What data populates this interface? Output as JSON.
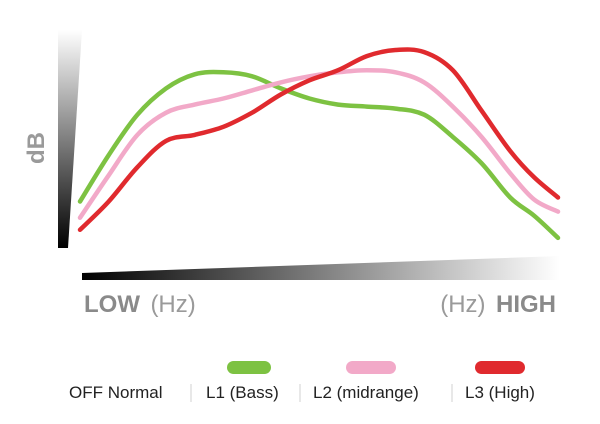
{
  "chart_data": {
    "type": "line",
    "title": "",
    "ylabel": "dB",
    "xlabel_low_bold": "LOW",
    "xlabel_low_unit": "(Hz)",
    "xlabel_high_unit": "(Hz)",
    "xlabel_high_bold": "HIGH",
    "xlim": [
      0,
      100
    ],
    "ylim": [
      0,
      100
    ],
    "grid": false,
    "legend_position": "bottom",
    "off_label": "OFF Normal",
    "series": [
      {
        "name": "L1 (Bass)",
        "color": "#7dc242",
        "x": [
          0,
          6,
          12,
          18,
          24,
          30,
          36,
          42,
          48,
          54,
          60,
          66,
          72,
          78,
          84,
          90,
          95,
          100
        ],
        "y": [
          23,
          46,
          66,
          79,
          86,
          87,
          85,
          79,
          74,
          71,
          70,
          69,
          66,
          55,
          42,
          25,
          16,
          5
        ]
      },
      {
        "name": "L2 (midrange)",
        "color": "#f2a9c8",
        "x": [
          0,
          6,
          12,
          18,
          24,
          30,
          36,
          42,
          48,
          54,
          60,
          66,
          72,
          78,
          84,
          90,
          95,
          100
        ],
        "y": [
          15,
          36,
          56,
          67,
          71,
          74,
          78,
          82,
          85,
          87,
          88,
          87,
          82,
          70,
          55,
          37,
          24,
          18
        ]
      },
      {
        "name": "L3 (High)",
        "color": "#e02a2e",
        "x": [
          0,
          6,
          12,
          18,
          24,
          30,
          36,
          42,
          48,
          54,
          60,
          66,
          72,
          78,
          84,
          90,
          95,
          100
        ],
        "y": [
          9,
          23,
          40,
          53,
          56,
          60,
          67,
          76,
          83,
          88,
          95,
          98,
          97,
          88,
          68,
          48,
          35,
          25
        ]
      }
    ]
  }
}
